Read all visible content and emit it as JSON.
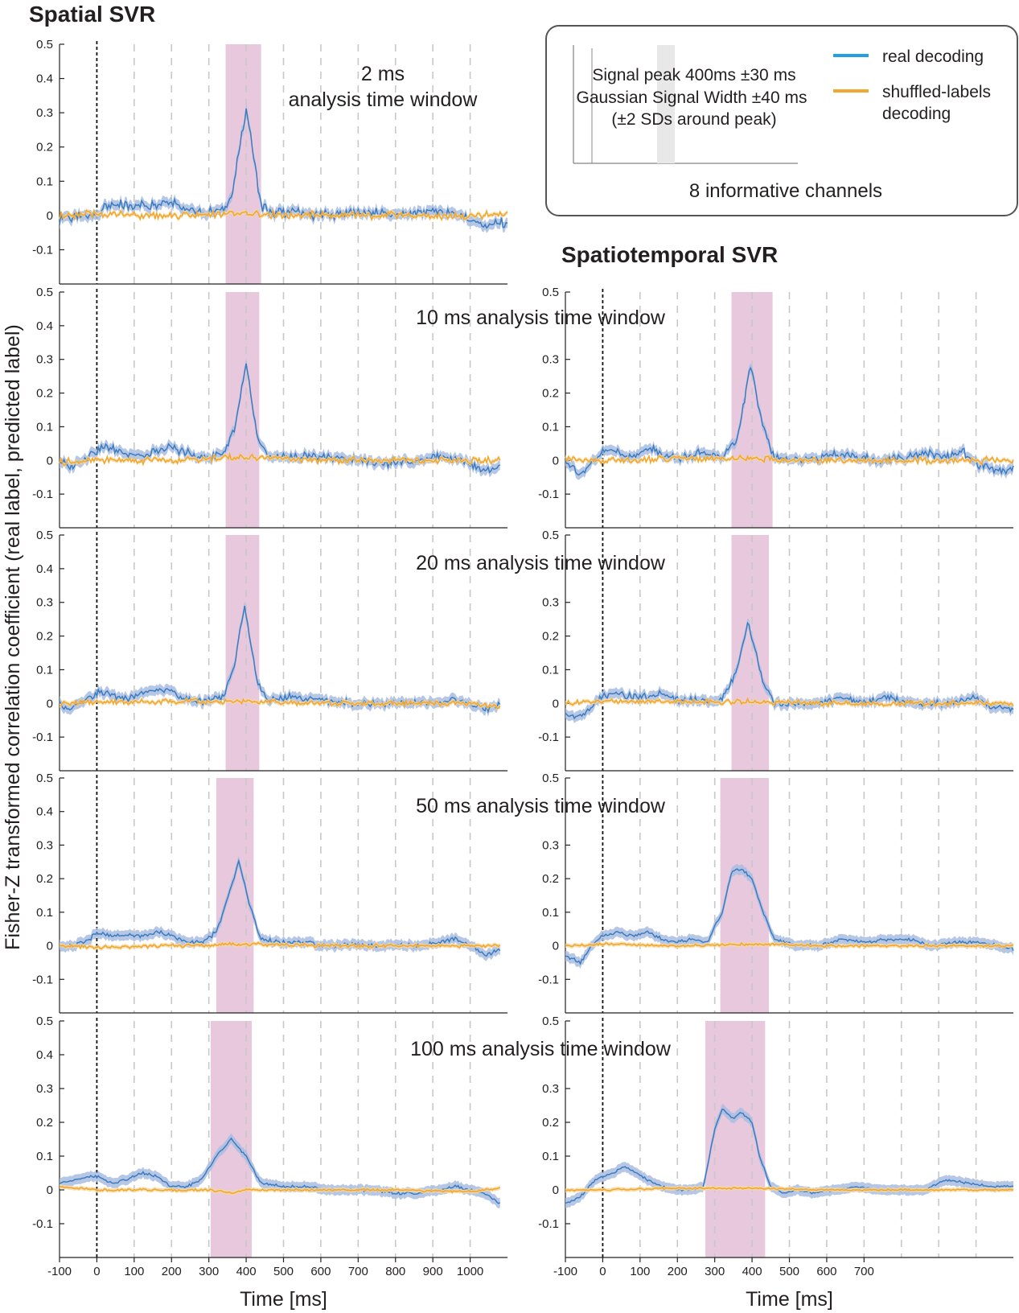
{
  "spatial_title": "Spatial SVR",
  "spatiotemporal_title": "Spatiotemporal SVR",
  "y_axis_label": "Fisher-Z transformed correlation coefficient (real label, predicted label)",
  "x_axis_label": "Time [ms]",
  "legend": {
    "inset_line1": "Signal peak 400ms ±30 ms",
    "inset_line2": "Gaussian Signal Width ±40 ms",
    "inset_line3": "(±2 SDs around peak)",
    "channels": "8 informative channels",
    "real": "real decoding",
    "shuffled_line1": "shuffled-labels",
    "shuffled_line2": "decoding"
  },
  "colors": {
    "real": "#3b7cc0",
    "real_band": "#a9bde0",
    "shuffled": "#f0a830",
    "shuffled_band": "#f8d8a0",
    "signal": "#e8c8dc",
    "grid": "#c8c8c8"
  },
  "chart_data": [
    {
      "type": "line",
      "id": "spatial_2",
      "column": "Spatial SVR",
      "window_ms": 2,
      "title_line1": "2 ms",
      "title_line2": "analysis time window",
      "xlabel": "",
      "ylabel": "",
      "xlim": [
        -100,
        1100
      ],
      "ylim": [
        -0.2,
        0.5
      ],
      "y_ticks": [
        0.5,
        0.4,
        0.3,
        0.2,
        0.1,
        0,
        -0.1
      ],
      "x_ticks": [],
      "signal_window": [
        345,
        440
      ],
      "peak_x": 400,
      "peak": 0.31,
      "sigma": 20,
      "noise": 0.018,
      "series": [
        {
          "name": "real decoding",
          "x": [
            -100,
            0,
            20,
            60,
            120,
            200,
            280,
            340,
            360,
            400,
            440,
            460,
            520,
            600,
            700,
            800,
            900,
            950,
            1000,
            1040,
            1100
          ],
          "y": [
            -0.01,
            0.0,
            0.03,
            0.03,
            0.03,
            0.04,
            0.005,
            0.02,
            0.05,
            0.31,
            0.03,
            0.01,
            0.01,
            0.0,
            0.01,
            0.005,
            0.01,
            0.01,
            -0.01,
            -0.03,
            -0.02
          ]
        },
        {
          "name": "shuffled-labels decoding",
          "x": [
            -100,
            0,
            200,
            400,
            600,
            800,
            1000,
            1100
          ],
          "y": [
            0.0,
            0.005,
            0.0,
            0.005,
            0.0,
            0.0,
            0.0,
            0.005
          ]
        }
      ]
    },
    {
      "type": "line",
      "id": "spatial_10",
      "column": "Spatial SVR",
      "window_ms": 10,
      "title": "10 ms analysis time window",
      "xlabel": "",
      "ylabel": "",
      "xlim": [
        -100,
        1100
      ],
      "ylim": [
        -0.2,
        0.5
      ],
      "y_ticks": [
        0.5,
        0.4,
        0.3,
        0.2,
        0.1,
        0,
        -0.1
      ],
      "x_ticks": [],
      "signal_window": [
        345,
        435
      ],
      "peak_x": 400,
      "peak": 0.29,
      "sigma": 22,
      "noise": 0.015,
      "series": [
        {
          "name": "real decoding",
          "x": [
            -100,
            -70,
            0,
            30,
            80,
            120,
            200,
            280,
            340,
            370,
            400,
            430,
            460,
            520,
            600,
            700,
            800,
            900,
            960,
            1000,
            1040,
            1080
          ],
          "y": [
            0.0,
            -0.02,
            0.03,
            0.04,
            0.02,
            0.01,
            0.04,
            0.005,
            0.02,
            0.1,
            0.29,
            0.06,
            0.01,
            0.01,
            0.01,
            0.0,
            -0.01,
            0.01,
            0.01,
            -0.01,
            -0.03,
            -0.02
          ]
        },
        {
          "name": "shuffled-labels decoding",
          "x": [
            -100,
            0,
            200,
            400,
            600,
            800,
            1000,
            1080
          ],
          "y": [
            -0.005,
            0.0,
            0.0,
            0.01,
            0.0,
            0.0,
            0.0,
            0.0
          ]
        }
      ]
    },
    {
      "type": "line",
      "id": "spatial_20",
      "column": "Spatial SVR",
      "window_ms": 20,
      "title": "20 ms analysis time window",
      "xlabel": "",
      "ylabel": "",
      "xlim": [
        -100,
        1100
      ],
      "ylim": [
        -0.2,
        0.5
      ],
      "y_ticks": [
        0.5,
        0.4,
        0.3,
        0.2,
        0.1,
        0,
        -0.1
      ],
      "x_ticks": [],
      "signal_window": [
        345,
        435
      ],
      "peak_x": 395,
      "peak": 0.29,
      "sigma": 25,
      "noise": 0.012,
      "series": [
        {
          "name": "real decoding",
          "x": [
            -100,
            -70,
            0,
            30,
            80,
            120,
            160,
            200,
            240,
            280,
            340,
            370,
            395,
            430,
            460,
            520,
            600,
            700,
            800,
            900,
            960,
            1000,
            1040,
            1080
          ],
          "y": [
            0.0,
            -0.02,
            0.03,
            0.03,
            0.01,
            0.03,
            0.04,
            0.04,
            0.01,
            0.005,
            0.02,
            0.12,
            0.29,
            0.06,
            0.01,
            0.02,
            0.01,
            0.0,
            0.0,
            0.0,
            0.01,
            0.0,
            -0.02,
            0.0
          ]
        },
        {
          "name": "shuffled-labels decoding",
          "x": [
            -100,
            0,
            200,
            400,
            600,
            800,
            1000,
            1080
          ],
          "y": [
            0.0,
            0.005,
            0.005,
            0.005,
            0.0,
            0.0,
            0.0,
            -0.01
          ]
        }
      ]
    },
    {
      "type": "line",
      "id": "spatial_50",
      "column": "Spatial SVR",
      "window_ms": 50,
      "title": "50 ms analysis time window",
      "xlabel": "",
      "ylabel": "",
      "xlim": [
        -100,
        1100
      ],
      "ylim": [
        -0.2,
        0.5
      ],
      "y_ticks": [
        0.5,
        0.4,
        0.3,
        0.2,
        0.1,
        0,
        -0.1
      ],
      "x_ticks": [],
      "signal_window": [
        320,
        420
      ],
      "peak_x": 380,
      "peak": 0.25,
      "sigma": 30,
      "noise": 0.008,
      "series": [
        {
          "name": "real decoding",
          "x": [
            -100,
            -60,
            -20,
            0,
            40,
            80,
            120,
            160,
            200,
            240,
            280,
            320,
            350,
            380,
            410,
            440,
            500,
            560,
            620,
            680,
            740,
            800,
            860,
            920,
            960,
            1000,
            1040,
            1080
          ],
          "y": [
            0.0,
            0.0,
            0.02,
            0.04,
            0.03,
            0.03,
            0.03,
            0.04,
            0.03,
            0.01,
            0.01,
            0.04,
            0.14,
            0.25,
            0.12,
            0.02,
            0.01,
            0.01,
            0.0,
            0.005,
            0.0,
            0.0,
            0.0,
            0.01,
            0.02,
            0.0,
            -0.03,
            -0.01
          ]
        },
        {
          "name": "shuffled-labels decoding",
          "x": [
            -100,
            0,
            200,
            400,
            600,
            800,
            1000,
            1080
          ],
          "y": [
            0.0,
            -0.005,
            0.0,
            0.005,
            0.0,
            0.0,
            0.0,
            0.0
          ]
        }
      ]
    },
    {
      "type": "line",
      "id": "spatial_100",
      "column": "Spatial SVR",
      "window_ms": 100,
      "title": "100 ms analysis time window",
      "xlabel": "Time [ms]",
      "ylabel": "",
      "xlim": [
        -100,
        1100
      ],
      "ylim": [
        -0.2,
        0.5
      ],
      "y_ticks": [
        0.5,
        0.4,
        0.3,
        0.2,
        0.1,
        0,
        -0.1
      ],
      "x_ticks": [
        -100,
        0,
        100,
        200,
        300,
        400,
        500,
        600,
        700,
        800,
        900,
        1000
      ],
      "signal_window": [
        305,
        415
      ],
      "peak_x": 360,
      "peak": 0.15,
      "sigma": 35,
      "noise": 0.005,
      "series": [
        {
          "name": "real decoding",
          "x": [
            -100,
            -60,
            -20,
            0,
            40,
            80,
            120,
            160,
            200,
            240,
            280,
            320,
            360,
            400,
            440,
            500,
            560,
            620,
            680,
            740,
            800,
            860,
            920,
            960,
            1000,
            1040,
            1080
          ],
          "y": [
            0.02,
            0.03,
            0.04,
            0.04,
            0.02,
            0.03,
            0.05,
            0.04,
            0.01,
            0.01,
            0.03,
            0.1,
            0.15,
            0.1,
            0.02,
            0.01,
            0.01,
            0.0,
            0.0,
            0.0,
            -0.01,
            -0.01,
            0.0,
            0.01,
            0.0,
            -0.01,
            -0.04
          ]
        },
        {
          "name": "shuffled-labels decoding",
          "x": [
            -100,
            0,
            200,
            300,
            360,
            400,
            600,
            800,
            1000,
            1080
          ],
          "y": [
            0.01,
            0.0,
            0.0,
            0.0,
            -0.01,
            0.0,
            0.0,
            0.0,
            -0.005,
            0.005
          ]
        }
      ]
    },
    {
      "type": "line",
      "id": "spatiotemporal_10",
      "column": "Spatiotemporal SVR",
      "window_ms": 10,
      "xlabel": "",
      "ylabel": "",
      "xlim": [
        -100,
        1100
      ],
      "ylim": [
        -0.2,
        0.5
      ],
      "y_ticks": [
        0.5,
        0.3,
        0.2,
        0.1,
        0,
        -0.1
      ],
      "x_ticks": [],
      "signal_window": [
        345,
        455
      ],
      "peak_x": 395,
      "peak": 0.28,
      "sigma": 25,
      "noise": 0.015,
      "series": [
        {
          "name": "real decoding",
          "x": [
            -100,
            -60,
            -20,
            0,
            40,
            80,
            120,
            160,
            200,
            260,
            320,
            360,
            395,
            430,
            460,
            500,
            560,
            620,
            680,
            740,
            800,
            860,
            920,
            960,
            1000,
            1060,
            1100
          ],
          "y": [
            0.0,
            -0.04,
            0.0,
            0.03,
            0.03,
            0.01,
            0.04,
            0.02,
            0.005,
            0.02,
            0.01,
            0.06,
            0.28,
            0.1,
            0.01,
            0.0,
            0.0,
            0.02,
            0.01,
            0.0,
            0.01,
            0.02,
            0.01,
            0.03,
            -0.01,
            -0.03,
            -0.02
          ]
        },
        {
          "name": "shuffled-labels decoding",
          "x": [
            -100,
            0,
            200,
            400,
            600,
            800,
            1000,
            1100
          ],
          "y": [
            0.005,
            0.0,
            0.005,
            0.005,
            0.0,
            0.0,
            0.0,
            0.0
          ]
        }
      ]
    },
    {
      "type": "line",
      "id": "spatiotemporal_20",
      "column": "Spatiotemporal SVR",
      "window_ms": 20,
      "xlabel": "",
      "ylabel": "",
      "xlim": [
        -100,
        1100
      ],
      "ylim": [
        -0.2,
        0.5
      ],
      "y_ticks": [
        0.5,
        0.3,
        0.2,
        0.1,
        0,
        -0.1
      ],
      "x_ticks": [],
      "signal_window": [
        345,
        445
      ],
      "peak_x": 390,
      "peak": 0.24,
      "sigma": 28,
      "noise": 0.012,
      "series": [
        {
          "name": "real decoding",
          "x": [
            -100,
            -60,
            -20,
            0,
            40,
            80,
            120,
            160,
            200,
            260,
            320,
            360,
            390,
            430,
            460,
            520,
            580,
            640,
            700,
            760,
            820,
            880,
            940,
            1000,
            1040,
            1100
          ],
          "y": [
            -0.03,
            -0.04,
            0.0,
            0.02,
            0.03,
            0.02,
            0.02,
            0.03,
            0.01,
            0.01,
            0.01,
            0.1,
            0.24,
            0.06,
            0.0,
            0.0,
            0.0,
            0.02,
            0.0,
            0.02,
            0.0,
            0.0,
            0.0,
            0.02,
            -0.01,
            -0.02
          ]
        },
        {
          "name": "shuffled-labels decoding",
          "x": [
            -100,
            0,
            200,
            400,
            600,
            800,
            1000,
            1100
          ],
          "y": [
            0.0,
            0.005,
            0.005,
            0.005,
            0.0,
            0.0,
            0.0,
            0.0
          ]
        }
      ]
    },
    {
      "type": "line",
      "id": "spatiotemporal_50",
      "column": "Spatiotemporal SVR",
      "window_ms": 50,
      "xlabel": "",
      "ylabel": "",
      "xlim": [
        -100,
        1100
      ],
      "ylim": [
        -0.2,
        0.5
      ],
      "y_ticks": [
        0.5,
        0.3,
        0.2,
        0.1,
        0,
        -0.1
      ],
      "x_ticks": [],
      "signal_window": [
        315,
        445
      ],
      "peak_x": 370,
      "peak": 0.23,
      "sigma": 35,
      "noise": 0.006,
      "series": [
        {
          "name": "real decoding",
          "x": [
            -100,
            -60,
            -30,
            0,
            40,
            80,
            120,
            160,
            200,
            240,
            280,
            320,
            345,
            370,
            400,
            430,
            460,
            520,
            580,
            640,
            700,
            760,
            820,
            880,
            940,
            1000,
            1060,
            1100
          ],
          "y": [
            -0.03,
            -0.05,
            0.0,
            0.03,
            0.04,
            0.03,
            0.04,
            0.02,
            0.01,
            0.02,
            0.01,
            0.1,
            0.22,
            0.23,
            0.2,
            0.1,
            0.02,
            0.0,
            0.0,
            0.02,
            0.01,
            0.02,
            0.02,
            0.0,
            0.01,
            0.01,
            0.0,
            -0.01
          ]
        },
        {
          "name": "shuffled-labels decoding",
          "x": [
            -100,
            0,
            200,
            400,
            600,
            800,
            1000,
            1100
          ],
          "y": [
            0.0,
            0.005,
            0.0,
            0.005,
            0.0,
            0.0,
            0.0,
            0.0
          ]
        }
      ]
    },
    {
      "type": "line",
      "id": "spatiotemporal_100",
      "column": "Spatiotemporal SVR",
      "window_ms": 100,
      "xlabel": "Time [ms]",
      "ylabel": "",
      "xlim": [
        -100,
        1100
      ],
      "ylim": [
        -0.2,
        0.5
      ],
      "y_ticks": [
        0.5,
        0.3,
        0.2,
        0.1,
        0,
        -0.1
      ],
      "x_ticks": [
        -100,
        0,
        100,
        200,
        300,
        400,
        500,
        600,
        700
      ],
      "signal_window": [
        275,
        435
      ],
      "peak_x": 360,
      "peak": 0.24,
      "sigma": 45,
      "noise": 0.004,
      "series": [
        {
          "name": "real decoding",
          "x": [
            -100,
            -60,
            -20,
            0,
            30,
            60,
            90,
            120,
            160,
            200,
            240,
            270,
            300,
            320,
            350,
            370,
            400,
            420,
            450,
            480,
            520,
            560,
            620,
            680,
            740,
            800,
            860,
            920,
            980,
            1040,
            1100
          ],
          "y": [
            -0.04,
            -0.02,
            0.03,
            0.04,
            0.05,
            0.07,
            0.05,
            0.03,
            0.01,
            0.0,
            0.0,
            0.01,
            0.18,
            0.24,
            0.21,
            0.23,
            0.2,
            0.1,
            0.01,
            -0.01,
            0.0,
            -0.01,
            0.0,
            0.01,
            0.0,
            0.0,
            0.0,
            0.03,
            0.02,
            0.01,
            0.01
          ]
        },
        {
          "name": "shuffled-labels decoding",
          "x": [
            -100,
            0,
            200,
            400,
            600,
            800,
            1000,
            1100
          ],
          "y": [
            0.0,
            0.0,
            0.005,
            0.005,
            0.0,
            0.0,
            0.0,
            0.0
          ]
        }
      ]
    }
  ]
}
